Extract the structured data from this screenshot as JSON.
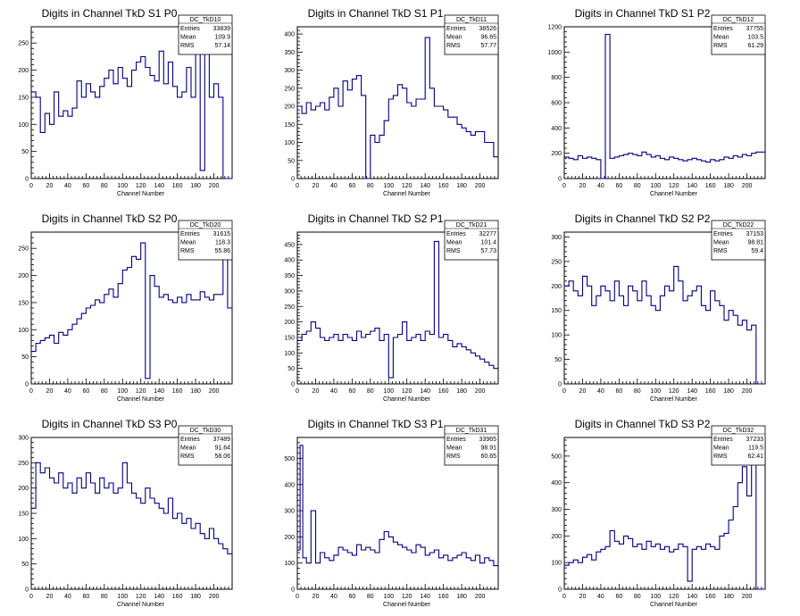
{
  "colors": {
    "line": "#000080",
    "frame": "#000000",
    "background": "#ffffff"
  },
  "chart_data": [
    {
      "type": "line",
      "title": "Digits in Channel TkD S1 P0",
      "xlabel": "Channel Number",
      "xlim": [
        0,
        220
      ],
      "ylim": [
        0,
        280
      ],
      "xticks": [
        0,
        20,
        40,
        60,
        80,
        100,
        120,
        140,
        160,
        180,
        200
      ],
      "yticks": [
        0,
        50,
        100,
        150,
        200,
        250
      ],
      "stats": {
        "name": "DC_TkD10",
        "entries": "33839",
        "mean": "109.9",
        "rms": "57.14"
      },
      "series": [
        {
          "x": [
            0,
            5,
            10,
            15,
            20,
            25,
            30,
            35,
            40,
            45,
            50,
            55,
            60,
            65,
            70,
            75,
            80,
            85,
            90,
            95,
            100,
            105,
            110,
            115,
            120,
            125,
            130,
            135,
            140,
            145,
            150,
            155,
            160,
            165,
            170,
            175,
            180,
            185,
            190,
            195,
            200,
            205,
            210,
            215
          ],
          "values": [
            160,
            150,
            85,
            120,
            100,
            160,
            115,
            125,
            115,
            130,
            180,
            150,
            175,
            160,
            150,
            170,
            185,
            200,
            175,
            205,
            185,
            170,
            200,
            215,
            225,
            205,
            190,
            180,
            235,
            175,
            215,
            170,
            150,
            160,
            205,
            150,
            240,
            15,
            240,
            150,
            175,
            150,
            0,
            0
          ]
        }
      ]
    },
    {
      "type": "line",
      "title": "Digits in Channel TkD S1 P1",
      "xlabel": "Channel Number",
      "xlim": [
        0,
        220
      ],
      "ylim": [
        0,
        420
      ],
      "xticks": [
        0,
        20,
        40,
        60,
        80,
        100,
        120,
        140,
        160,
        180,
        200
      ],
      "yticks": [
        0,
        50,
        100,
        150,
        200,
        250,
        300,
        350,
        400
      ],
      "stats": {
        "name": "DC_TkD11",
        "entries": "38526",
        "mean": "96.65",
        "rms": "57.77"
      },
      "series": [
        {
          "x": [
            0,
            5,
            10,
            15,
            20,
            25,
            30,
            35,
            40,
            45,
            50,
            55,
            60,
            65,
            70,
            75,
            80,
            85,
            90,
            95,
            100,
            105,
            110,
            115,
            120,
            125,
            130,
            135,
            140,
            145,
            150,
            155,
            160,
            165,
            170,
            175,
            180,
            185,
            190,
            195,
            200,
            205,
            210,
            215
          ],
          "values": [
            200,
            180,
            210,
            190,
            200,
            210,
            190,
            225,
            250,
            200,
            270,
            245,
            275,
            285,
            230,
            0,
            120,
            100,
            120,
            160,
            220,
            230,
            260,
            250,
            210,
            200,
            220,
            220,
            390,
            250,
            200,
            200,
            190,
            170,
            170,
            150,
            140,
            130,
            120,
            130,
            130,
            100,
            100,
            60
          ]
        }
      ]
    },
    {
      "type": "line",
      "title": "Digits in Channel TkD S1 P2",
      "xlabel": "Channel Number",
      "xlim": [
        0,
        220
      ],
      "ylim": [
        0,
        1200
      ],
      "xticks": [
        0,
        20,
        40,
        60,
        80,
        100,
        120,
        140,
        160,
        180,
        200
      ],
      "yticks": [
        0,
        200,
        400,
        600,
        800,
        1000,
        1200
      ],
      "stats": {
        "name": "DC_TkD12",
        "entries": "37755",
        "mean": "103.5",
        "rms": "61.29"
      },
      "series": [
        {
          "x": [
            0,
            5,
            10,
            15,
            20,
            25,
            30,
            35,
            40,
            45,
            50,
            55,
            60,
            65,
            70,
            75,
            80,
            85,
            90,
            95,
            100,
            105,
            110,
            115,
            120,
            125,
            130,
            135,
            140,
            145,
            150,
            155,
            160,
            165,
            170,
            175,
            180,
            185,
            190,
            195,
            200,
            205,
            210
          ],
          "values": [
            170,
            160,
            150,
            180,
            160,
            170,
            160,
            150,
            0,
            1140,
            160,
            170,
            180,
            190,
            200,
            190,
            180,
            210,
            190,
            170,
            180,
            160,
            150,
            170,
            160,
            150,
            140,
            150,
            160,
            150,
            140,
            130,
            150,
            140,
            150,
            170,
            160,
            180,
            170,
            190,
            180,
            200,
            210
          ]
        }
      ]
    },
    {
      "type": "line",
      "title": "Digits in Channel TkD S2 P0",
      "xlabel": "Channel Number",
      "xlim": [
        0,
        220
      ],
      "ylim": [
        0,
        280
      ],
      "xticks": [
        0,
        20,
        40,
        60,
        80,
        100,
        120,
        140,
        160,
        180,
        200
      ],
      "yticks": [
        0,
        50,
        100,
        150,
        200,
        250
      ],
      "stats": {
        "name": "DC_TkD20",
        "entries": "31615",
        "mean": "118.3",
        "rms": "55.86"
      },
      "series": [
        {
          "x": [
            0,
            5,
            10,
            15,
            20,
            25,
            30,
            35,
            40,
            45,
            50,
            55,
            60,
            65,
            70,
            75,
            80,
            85,
            90,
            95,
            100,
            105,
            110,
            115,
            120,
            125,
            130,
            135,
            140,
            145,
            150,
            155,
            160,
            165,
            170,
            175,
            180,
            185,
            190,
            195,
            200,
            205,
            210,
            215
          ],
          "values": [
            60,
            75,
            80,
            85,
            90,
            75,
            95,
            90,
            100,
            110,
            120,
            130,
            140,
            145,
            155,
            150,
            165,
            175,
            160,
            185,
            210,
            215,
            235,
            230,
            260,
            10,
            200,
            180,
            160,
            165,
            155,
            150,
            160,
            150,
            165,
            155,
            155,
            170,
            160,
            155,
            165,
            165,
            240,
            140
          ]
        }
      ]
    },
    {
      "type": "line",
      "title": "Digits in Channel TkD S2 P1",
      "xlabel": "Channel Number",
      "xlim": [
        0,
        220
      ],
      "ylim": [
        0,
        490
      ],
      "xticks": [
        0,
        20,
        40,
        60,
        80,
        100,
        120,
        140,
        160,
        180,
        200
      ],
      "yticks": [
        0,
        50,
        100,
        150,
        200,
        250,
        300,
        350,
        400,
        450
      ],
      "stats": {
        "name": "DC_TkD21",
        "entries": "32277",
        "mean": "101.4",
        "rms": "57.73"
      },
      "series": [
        {
          "x": [
            0,
            5,
            10,
            15,
            20,
            25,
            30,
            35,
            40,
            45,
            50,
            55,
            60,
            65,
            70,
            75,
            80,
            85,
            90,
            95,
            100,
            105,
            110,
            115,
            120,
            125,
            130,
            135,
            140,
            145,
            150,
            155,
            160,
            165,
            170,
            175,
            180,
            185,
            190,
            195,
            200,
            205,
            210,
            215
          ],
          "values": [
            140,
            160,
            170,
            200,
            180,
            150,
            140,
            150,
            160,
            140,
            160,
            150,
            140,
            170,
            150,
            160,
            170,
            180,
            140,
            160,
            20,
            150,
            160,
            200,
            140,
            150,
            160,
            140,
            170,
            160,
            460,
            150,
            160,
            140,
            120,
            130,
            120,
            110,
            100,
            90,
            80,
            70,
            60,
            50
          ]
        }
      ]
    },
    {
      "type": "line",
      "title": "Digits in Channel TkD S2 P2",
      "xlabel": "Channel Number",
      "xlim": [
        0,
        220
      ],
      "ylim": [
        0,
        310
      ],
      "xticks": [
        0,
        20,
        40,
        60,
        80,
        100,
        120,
        140,
        160,
        180,
        200
      ],
      "yticks": [
        0,
        50,
        100,
        150,
        200,
        250,
        300
      ],
      "stats": {
        "name": "DC_TkD22",
        "entries": "37153",
        "mean": "98.81",
        "rms": "59.4"
      },
      "series": [
        {
          "x": [
            0,
            5,
            10,
            15,
            20,
            25,
            30,
            35,
            40,
            45,
            50,
            55,
            60,
            65,
            70,
            75,
            80,
            85,
            90,
            95,
            100,
            105,
            110,
            115,
            120,
            125,
            130,
            135,
            140,
            145,
            150,
            155,
            160,
            165,
            170,
            175,
            180,
            185,
            190,
            195,
            200,
            205,
            210
          ],
          "values": [
            200,
            210,
            190,
            180,
            220,
            200,
            160,
            180,
            200,
            190,
            170,
            210,
            180,
            160,
            200,
            190,
            170,
            210,
            180,
            160,
            150,
            180,
            200,
            190,
            240,
            210,
            170,
            180,
            190,
            200,
            160,
            150,
            190,
            170,
            160,
            130,
            150,
            140,
            120,
            130,
            110,
            120,
            0
          ]
        }
      ]
    },
    {
      "type": "line",
      "title": "Digits in Channel TkD S3 P0",
      "xlabel": "Channel Number",
      "xlim": [
        0,
        220
      ],
      "ylim": [
        0,
        300
      ],
      "xticks": [
        0,
        20,
        40,
        60,
        80,
        100,
        120,
        140,
        160,
        180,
        200
      ],
      "yticks": [
        0,
        50,
        100,
        150,
        200,
        250,
        300
      ],
      "stats": {
        "name": "DC_TkD30",
        "entries": "37489",
        "mean": "91.64",
        "rms": "58.06"
      },
      "series": [
        {
          "x": [
            0,
            5,
            10,
            15,
            20,
            25,
            30,
            35,
            40,
            45,
            50,
            55,
            60,
            65,
            70,
            75,
            80,
            85,
            90,
            95,
            100,
            105,
            110,
            115,
            120,
            125,
            130,
            135,
            140,
            145,
            150,
            155,
            160,
            165,
            170,
            175,
            180,
            185,
            190,
            195,
            200,
            205,
            210,
            215
          ],
          "values": [
            160,
            250,
            230,
            240,
            220,
            210,
            230,
            200,
            210,
            190,
            220,
            200,
            230,
            210,
            190,
            220,
            200,
            210,
            190,
            200,
            250,
            210,
            190,
            180,
            170,
            200,
            180,
            170,
            160,
            150,
            180,
            140,
            150,
            130,
            140,
            120,
            130,
            110,
            100,
            120,
            100,
            90,
            80,
            70
          ]
        }
      ]
    },
    {
      "type": "line",
      "title": "Digits in Channel TkD S3 P1",
      "xlabel": "Channel Number",
      "xlim": [
        0,
        220
      ],
      "ylim": [
        0,
        580
      ],
      "xticks": [
        0,
        20,
        40,
        60,
        80,
        100,
        120,
        140,
        160,
        180,
        200
      ],
      "yticks": [
        0,
        100,
        200,
        300,
        400,
        500
      ],
      "stats": {
        "name": "DC_TkD31",
        "entries": "33965",
        "mean": "98.91",
        "rms": "60.65"
      },
      "series": [
        {
          "x": [
            0,
            3,
            6,
            10,
            15,
            20,
            25,
            30,
            35,
            40,
            45,
            50,
            55,
            60,
            65,
            70,
            75,
            80,
            85,
            90,
            95,
            100,
            105,
            110,
            115,
            120,
            125,
            130,
            135,
            140,
            145,
            150,
            155,
            160,
            165,
            170,
            175,
            180,
            185,
            190,
            195,
            200,
            205,
            210,
            215
          ],
          "values": [
            150,
            550,
            120,
            100,
            300,
            100,
            140,
            120,
            110,
            130,
            160,
            150,
            140,
            130,
            170,
            150,
            160,
            150,
            140,
            190,
            220,
            200,
            180,
            170,
            160,
            150,
            140,
            170,
            160,
            130,
            140,
            150,
            120,
            130,
            110,
            120,
            130,
            140,
            120,
            110,
            130,
            100,
            120,
            110,
            90
          ]
        }
      ]
    },
    {
      "type": "line",
      "title": "Digits in Channel TkD S3 P2",
      "xlabel": "Channel Number",
      "xlim": [
        0,
        220
      ],
      "ylim": [
        0,
        570
      ],
      "xticks": [
        0,
        20,
        40,
        60,
        80,
        100,
        120,
        140,
        160,
        180,
        200
      ],
      "yticks": [
        0,
        100,
        200,
        300,
        400,
        500
      ],
      "stats": {
        "name": "DC_TkD32",
        "entries": "37233",
        "mean": "119.5",
        "rms": "62.41"
      },
      "series": [
        {
          "x": [
            0,
            5,
            10,
            15,
            20,
            25,
            30,
            35,
            40,
            45,
            50,
            55,
            60,
            65,
            70,
            75,
            80,
            85,
            90,
            95,
            100,
            105,
            110,
            115,
            120,
            125,
            130,
            135,
            140,
            145,
            150,
            155,
            160,
            165,
            170,
            175,
            180,
            185,
            190,
            195,
            200,
            205,
            210
          ],
          "values": [
            90,
            100,
            110,
            100,
            120,
            130,
            110,
            140,
            150,
            160,
            220,
            180,
            170,
            200,
            190,
            160,
            170,
            150,
            180,
            160,
            170,
            150,
            160,
            140,
            150,
            170,
            160,
            30,
            150,
            160,
            150,
            170,
            160,
            150,
            200,
            210,
            260,
            310,
            400,
            460,
            350,
            480,
            0
          ]
        }
      ]
    }
  ]
}
